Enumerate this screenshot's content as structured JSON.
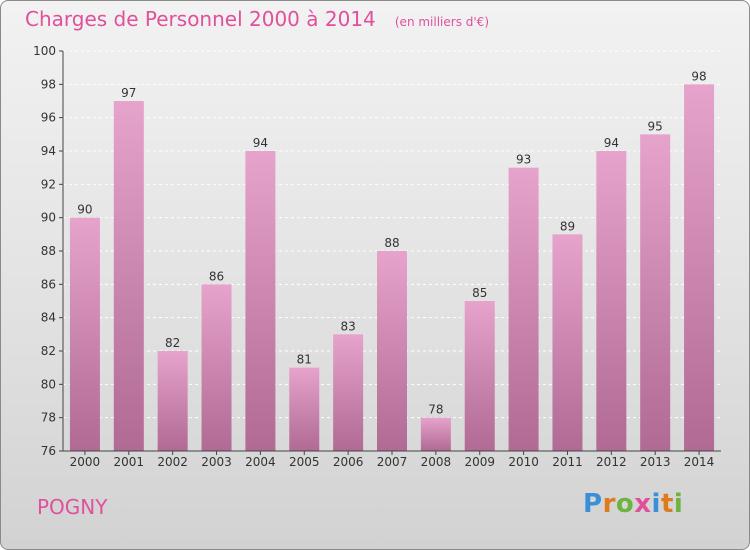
{
  "header": {
    "title": "Charges de Personnel 2000 à 2014",
    "subtitle": "(en milliers d'€)"
  },
  "footer": {
    "commune": "POGNY",
    "logo_text": "Proxiti",
    "logo_letters": [
      {
        "ch": "P",
        "color": "#3a8fd6"
      },
      {
        "ch": "r",
        "color": "#e07a1f"
      },
      {
        "ch": "o",
        "color": "#6cb33f"
      },
      {
        "ch": "x",
        "color": "#e0509b"
      },
      {
        "ch": "i",
        "color": "#3a8fd6"
      },
      {
        "ch": "t",
        "color": "#e07a1f"
      },
      {
        "ch": "i",
        "color": "#6cb33f"
      }
    ]
  },
  "colors": {
    "accent": "#e0509b",
    "bar_top": "#e6a3cb",
    "bar_bottom": "#b06a94",
    "axis": "#444444",
    "grid": "#ffffff"
  },
  "chart_data": {
    "type": "bar",
    "categories": [
      "2000",
      "2001",
      "2002",
      "2003",
      "2004",
      "2005",
      "2006",
      "2007",
      "2008",
      "2009",
      "2010",
      "2011",
      "2012",
      "2013",
      "2014"
    ],
    "values": [
      90,
      97,
      82,
      86,
      94,
      81,
      83,
      88,
      78,
      85,
      93,
      89,
      94,
      95,
      98
    ],
    "ylim": [
      76,
      100
    ],
    "yticks": [
      76,
      78,
      80,
      82,
      84,
      86,
      88,
      90,
      92,
      94,
      96,
      98,
      100
    ],
    "grid": true,
    "grid_style": "dashed horizontal",
    "data_labels": true
  }
}
